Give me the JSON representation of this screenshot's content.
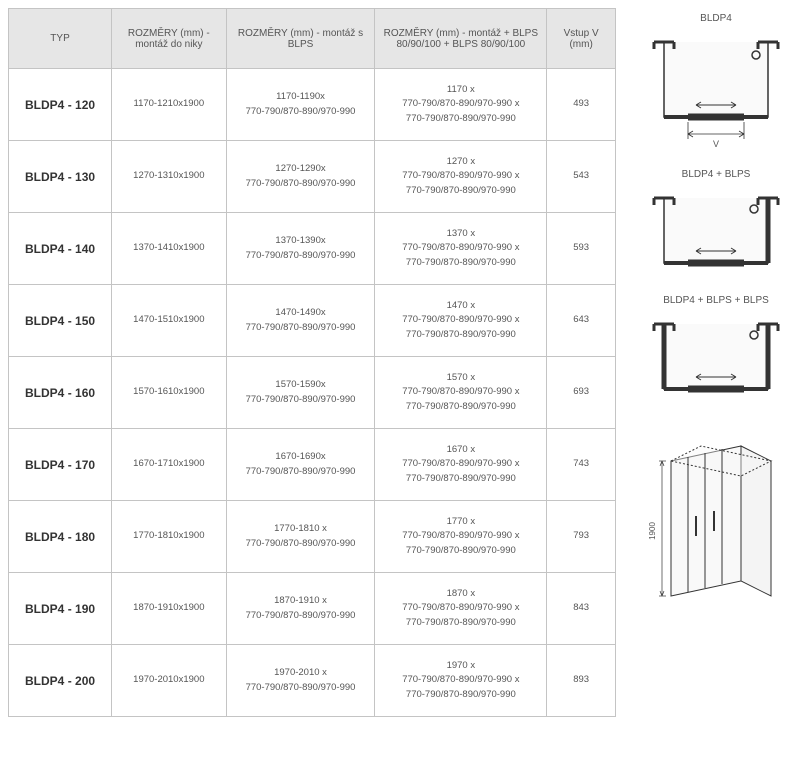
{
  "columns": [
    "TYP",
    "ROZMĚRY (mm) - montáž do niky",
    "ROZMĚRY (mm) - montáž s BLPS",
    "ROZMĚRY (mm) - montáž + BLPS 80/90/100 + BLPS 80/90/100",
    "Vstup V (mm)"
  ],
  "rows": [
    {
      "type": "BLDP4 - 120",
      "c1": "1170-1210x1900",
      "c2": "1170-1190x\n770-790/870-890/970-990",
      "c3": "1170 x\n770-790/870-890/970-990 x\n770-790/870-890/970-990",
      "c4": "493"
    },
    {
      "type": "BLDP4 - 130",
      "c1": "1270-1310x1900",
      "c2": "1270-1290x\n770-790/870-890/970-990",
      "c3": "1270 x\n770-790/870-890/970-990 x\n770-790/870-890/970-990",
      "c4": "543"
    },
    {
      "type": "BLDP4 - 140",
      "c1": "1370-1410x1900",
      "c2": "1370-1390x\n770-790/870-890/970-990",
      "c3": "1370 x\n770-790/870-890/970-990 x\n770-790/870-890/970-990",
      "c4": "593"
    },
    {
      "type": "BLDP4 - 150",
      "c1": "1470-1510x1900",
      "c2": "1470-1490x\n770-790/870-890/970-990",
      "c3": "1470 x\n770-790/870-890/970-990 x\n770-790/870-890/970-990",
      "c4": "643"
    },
    {
      "type": "BLDP4 - 160",
      "c1": "1570-1610x1900",
      "c2": "1570-1590x\n770-790/870-890/970-990",
      "c3": "1570 x\n770-790/870-890/970-990 x\n770-790/870-890/970-990",
      "c4": "693"
    },
    {
      "type": "BLDP4 - 170",
      "c1": "1670-1710x1900",
      "c2": "1670-1690x\n770-790/870-890/970-990",
      "c3": "1670 x\n770-790/870-890/970-990 x\n770-790/870-890/970-990",
      "c4": "743"
    },
    {
      "type": "BLDP4 - 180",
      "c1": "1770-1810x1900",
      "c2": "1770-1810 x\n770-790/870-890/970-990",
      "c3": "1770 x\n770-790/870-890/970-990 x\n770-790/870-890/970-990",
      "c4": "793"
    },
    {
      "type": "BLDP4 - 190",
      "c1": "1870-1910x1900",
      "c2": "1870-1910 x\n770-790/870-890/970-990",
      "c3": "1870 x\n770-790/870-890/970-990 x\n770-790/870-890/970-990",
      "c4": "843"
    },
    {
      "type": "BLDP4 - 200",
      "c1": "1970-2010x1900",
      "c2": "1970-2010 x\n770-790/870-890/970-990",
      "c3": "1970 x\n770-790/870-890/970-990 x\n770-790/870-890/970-990",
      "c4": "893"
    }
  ],
  "diagrams": {
    "d1_label": "BLDP4",
    "d2_label": "BLDP4 + BLPS",
    "d3_label": "BLDP4 + BLPS + BLPS",
    "v_label": "V",
    "height_label": "1900"
  },
  "column_widths": [
    "90px",
    "100px",
    "130px",
    "150px",
    "60px"
  ],
  "colors": {
    "header_bg": "#e6e6e6",
    "border": "#c4c4c4",
    "text": "#555555",
    "type_text": "#333333"
  }
}
